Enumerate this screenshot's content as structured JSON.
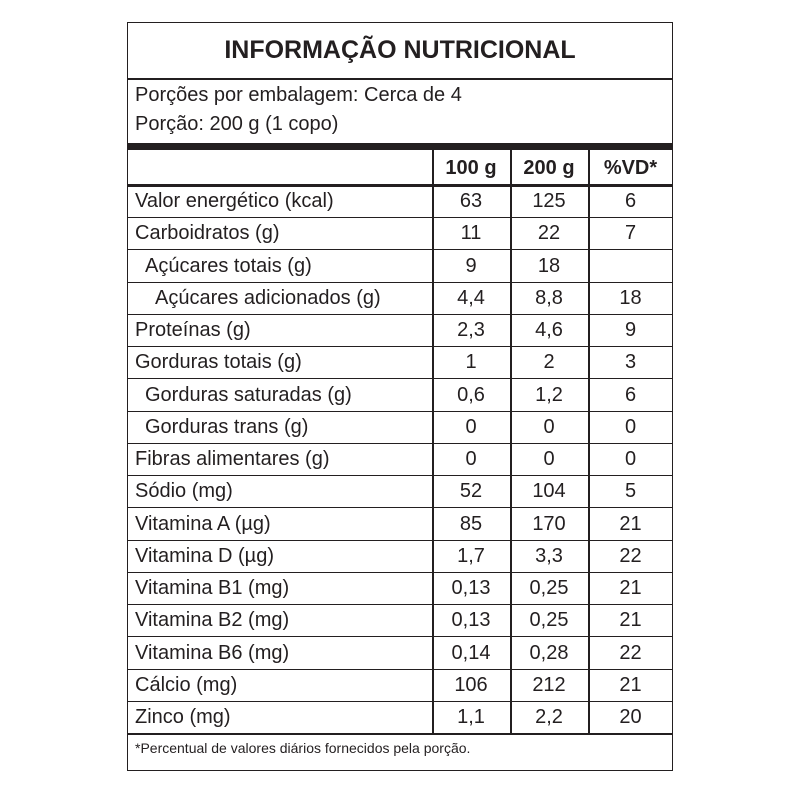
{
  "title": "INFORMAÇÃO NUTRICIONAL",
  "servings": [
    "Porções por embalagem: Cerca de 4",
    "Porção: 200 g (1 copo)"
  ],
  "table": {
    "header": [
      "100 g",
      "200 g",
      "%VD*"
    ],
    "rows": [
      [
        "Valor energético (kcal)",
        "63",
        "125",
        "6"
      ],
      [
        "Carboidratos (g)",
        "11",
        "22",
        "7"
      ],
      [
        "Açúcares totais (g)",
        "9",
        "18",
        null
      ],
      [
        "Açúcares adicionados (g)",
        "4,4",
        "8,8",
        "18"
      ],
      [
        "Proteínas (g)",
        "2,3",
        "4,6",
        "9"
      ],
      [
        "Gorduras totais (g)",
        "1",
        "2",
        "3"
      ],
      [
        "Gorduras saturadas (g)",
        "0,6",
        "1,2",
        "6"
      ],
      [
        "Gorduras trans (g)",
        "0",
        "0",
        "0"
      ],
      [
        "Fibras alimentares (g)",
        "0",
        "0",
        "0"
      ],
      [
        "Sódio (mg)",
        "52",
        "104",
        "5"
      ],
      [
        "Vitamina A (µg)",
        "85",
        "170",
        "21"
      ],
      [
        "Vitamina D (µg)",
        "1,7",
        "3,3",
        "22"
      ],
      [
        "Vitamina B1 (mg)",
        "0,13",
        "0,25",
        "21"
      ],
      [
        "Vitamina B2 (mg)",
        "0,13",
        "0,25",
        "21"
      ],
      [
        "Vitamina B6 (mg)",
        "0,14",
        "0,28",
        "22"
      ],
      [
        "Cálcio (mg)",
        "106",
        "212",
        "21"
      ],
      [
        "Zinco (mg)",
        "1,1",
        "2,2",
        "20"
      ]
    ]
  },
  "footnote": "*Percentual de valores diários fornecidos pela porção."
}
